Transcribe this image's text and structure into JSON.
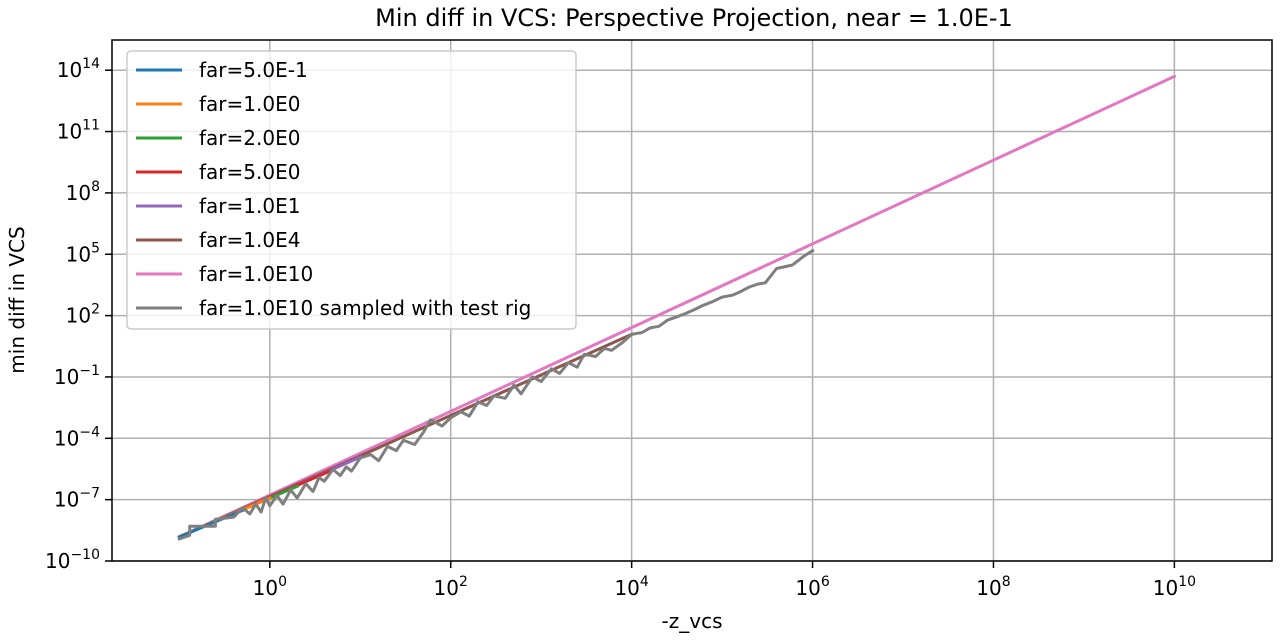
{
  "chart_data": {
    "type": "line",
    "title": "Min diff in VCS: Perspective Projection, near = 1.0E-1",
    "xlabel": "-z_vcs",
    "ylabel": "min diff in VCS",
    "xscale": "log",
    "yscale": "log",
    "xlim": [
      0.018,
      120000000000.0
    ],
    "ylim": [
      1e-10,
      3000000000000000.0
    ],
    "x_ticks": [
      {
        "base": "10",
        "exp": "0",
        "value": 1
      },
      {
        "base": "10",
        "exp": "2",
        "value": 100
      },
      {
        "base": "10",
        "exp": "4",
        "value": 10000
      },
      {
        "base": "10",
        "exp": "6",
        "value": 1000000
      },
      {
        "base": "10",
        "exp": "8",
        "value": 100000000
      },
      {
        "base": "10",
        "exp": "10",
        "value": 10000000000
      }
    ],
    "y_ticks": [
      {
        "base": "10",
        "exp": "−10",
        "value": 1e-10
      },
      {
        "base": "10",
        "exp": "−7",
        "value": 1e-07
      },
      {
        "base": "10",
        "exp": "−4",
        "value": 0.0001
      },
      {
        "base": "10",
        "exp": "−1",
        "value": 0.1
      },
      {
        "base": "10",
        "exp": "2",
        "value": 100
      },
      {
        "base": "10",
        "exp": "5",
        "value": 100000
      },
      {
        "base": "10",
        "exp": "8",
        "value": 100000000
      },
      {
        "base": "10",
        "exp": "11",
        "value": 100000000000
      },
      {
        "base": "10",
        "exp": "14",
        "value": 100000000000000
      }
    ],
    "grid": true,
    "legend_position": "top-left",
    "series": [
      {
        "name": "far=5.0E-1",
        "color": "#1f77b4",
        "x": [
          0.1,
          0.5
        ],
        "y": [
          1.5e-09,
          3e-08
        ]
      },
      {
        "name": "far=1.0E0",
        "color": "#ff7f0e",
        "x": [
          0.1,
          1
        ],
        "y": [
          1.5e-09,
          1.2e-07
        ]
      },
      {
        "name": "far=2.0E0",
        "color": "#2ca02c",
        "x": [
          0.1,
          2
        ],
        "y": [
          1.5e-09,
          4.5e-07
        ]
      },
      {
        "name": "far=5.0E0",
        "color": "#d62728",
        "x": [
          0.1,
          5
        ],
        "y": [
          1.5e-09,
          2.9e-06
        ]
      },
      {
        "name": "far=1.0E1",
        "color": "#9467bd",
        "x": [
          0.1,
          10
        ],
        "y": [
          1.5e-09,
          1.2e-05
        ]
      },
      {
        "name": "far=1.0E4",
        "color": "#8c564b",
        "x": [
          0.1,
          10000
        ],
        "y": [
          1.5e-09,
          12
        ]
      },
      {
        "name": "far=1.0E10",
        "color": "#e377c2",
        "x": [
          0.1,
          10000000000
        ],
        "y": [
          1.5e-09,
          50000000000000.0
        ]
      },
      {
        "name": "far=1.0E10 sampled with test rig",
        "color": "#7f7f7f",
        "x": [
          0.1,
          0.13,
          0.13,
          0.25,
          0.25,
          0.4,
          0.5,
          0.6,
          0.7,
          0.8,
          0.9,
          1.0,
          1.2,
          1.4,
          1.7,
          2,
          2.5,
          3,
          3.5,
          4,
          5,
          6,
          7,
          8,
          10,
          13,
          16,
          20,
          25,
          30,
          40,
          50,
          60,
          80,
          100,
          130,
          160,
          200,
          250,
          300,
          400,
          500,
          600,
          800,
          1000,
          1300,
          1600,
          2000,
          2500,
          3000,
          4000,
          5000,
          6000,
          8000,
          10000,
          13000,
          16000,
          20000,
          25000,
          30000,
          40000,
          50000,
          60000,
          80000,
          100000,
          130000,
          160000,
          200000,
          250000,
          300000,
          400000,
          500000,
          600000,
          800000,
          1000000
        ],
        "y": [
          1.2e-09,
          1.8e-09,
          5e-09,
          5e-09,
          1.1e-08,
          1.4e-08,
          4e-08,
          2e-08,
          6e-08,
          2.5e-08,
          1.2e-07,
          5e-08,
          1.6e-07,
          6e-08,
          3e-07,
          1.2e-07,
          6e-07,
          2.5e-07,
          1.2e-06,
          8e-07,
          3e-06,
          1.5e-06,
          4e-06,
          2.5e-06,
          1.1e-05,
          1.6e-05,
          8e-06,
          4e-05,
          2.5e-05,
          8e-05,
          5e-05,
          0.0002,
          0.0008,
          0.0004,
          0.001,
          0.002,
          0.0012,
          0.006,
          0.004,
          0.012,
          0.009,
          0.04,
          0.015,
          0.1,
          0.06,
          0.25,
          0.15,
          0.5,
          0.3,
          1.3,
          1.0,
          2.5,
          2.0,
          5,
          12,
          15,
          25,
          30,
          60,
          80,
          130,
          200,
          300,
          500,
          800,
          1000,
          1500,
          2500,
          3500,
          4000,
          20000,
          25000,
          30000,
          80000,
          150000
        ]
      }
    ]
  }
}
